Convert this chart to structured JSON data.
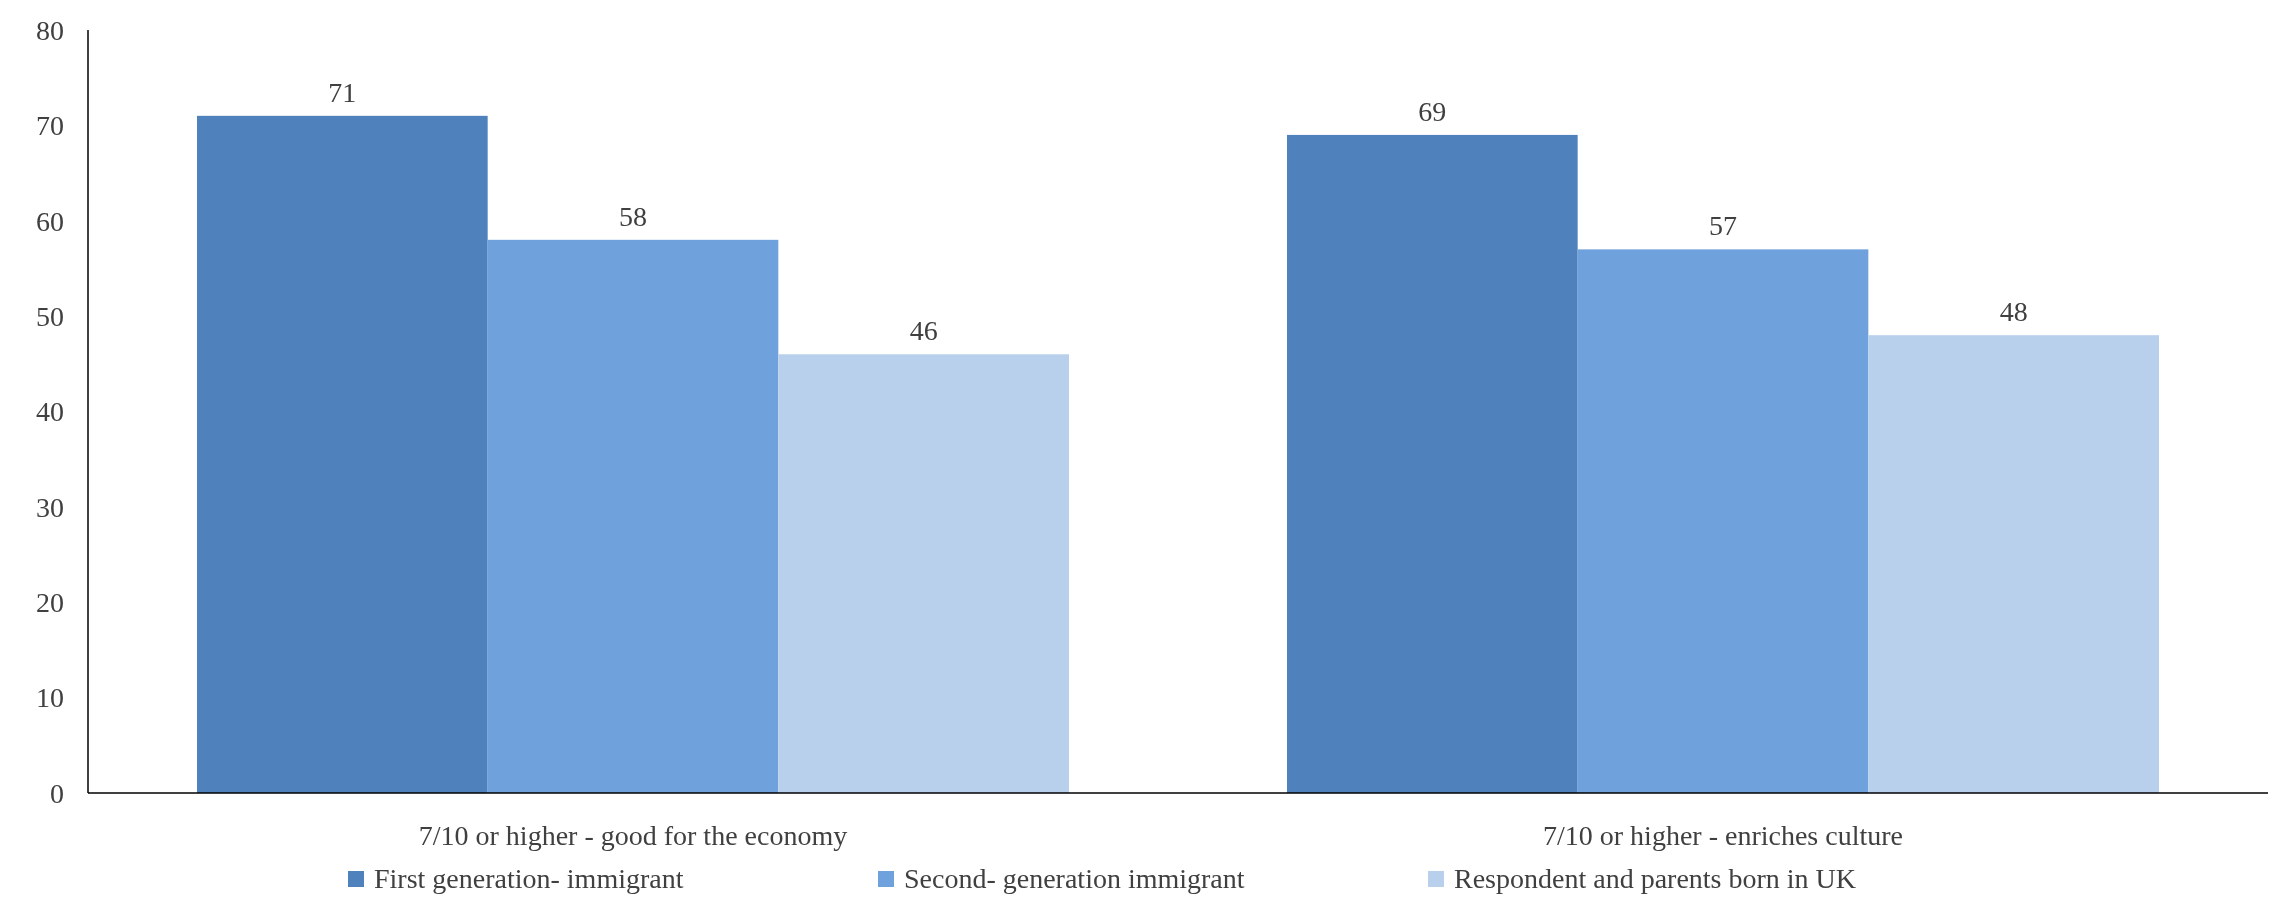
{
  "chart_data": {
    "type": "bar",
    "categories": [
      "7/10 or higher - good for the economy",
      "7/10 or higher - enriches culture"
    ],
    "series": [
      {
        "name": "First generation- immigrant",
        "color": "#4f81bd",
        "values": [
          71,
          69
        ]
      },
      {
        "name": "Second- generation immigrant",
        "color": "#6fa1dc",
        "values": [
          58,
          57
        ]
      },
      {
        "name": "Respondent and parents born in UK",
        "color": "#b9d0ec",
        "values": [
          46,
          48
        ]
      }
    ],
    "ylim": [
      0,
      80
    ],
    "yticks": [
      0,
      10,
      20,
      30,
      40,
      50,
      60,
      70,
      80
    ],
    "data_labels": true,
    "legend": "bottom",
    "grid": false
  }
}
